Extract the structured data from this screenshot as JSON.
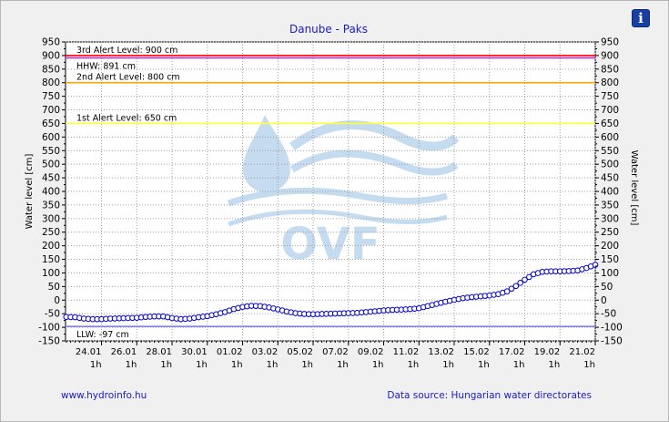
{
  "info_button": {
    "label": "i",
    "icon": "info-icon"
  },
  "footer": {
    "link": "www.hydroinfo.hu",
    "source": "Data source: Hungarian water directorates"
  },
  "watermark": {
    "text": "OVF",
    "color": "#5b9bd5"
  },
  "chart_data": {
    "type": "line",
    "title": "Danube - Paks",
    "ylabel": "Water level [cm]",
    "ylabel_right": "Water level [cm]",
    "ylim": [
      -150,
      950
    ],
    "yticks": [
      -150,
      -100,
      -50,
      0,
      50,
      100,
      150,
      200,
      250,
      300,
      350,
      400,
      450,
      500,
      550,
      600,
      650,
      700,
      750,
      800,
      850,
      900,
      950
    ],
    "xlim": [
      "2024-01-22T00:00",
      "2024-02-21T01:00"
    ],
    "xticks": [
      {
        "date": "2024-01-24T01:00",
        "label": "24.01",
        "sub": "1h"
      },
      {
        "date": "2024-01-26T01:00",
        "label": "26.01",
        "sub": "1h"
      },
      {
        "date": "2024-01-28T01:00",
        "label": "28.01",
        "sub": "1h"
      },
      {
        "date": "2024-01-30T01:00",
        "label": "30.01",
        "sub": "1h"
      },
      {
        "date": "2024-02-01T01:00",
        "label": "01.02",
        "sub": "1h"
      },
      {
        "date": "2024-02-03T01:00",
        "label": "03.02",
        "sub": "1h"
      },
      {
        "date": "2024-02-05T01:00",
        "label": "05.02",
        "sub": "1h"
      },
      {
        "date": "2024-02-07T01:00",
        "label": "07.02",
        "sub": "1h"
      },
      {
        "date": "2024-02-09T01:00",
        "label": "09.02",
        "sub": "1h"
      },
      {
        "date": "2024-02-11T01:00",
        "label": "11.02",
        "sub": "1h"
      },
      {
        "date": "2024-02-13T01:00",
        "label": "13.02",
        "sub": "1h"
      },
      {
        "date": "2024-02-15T01:00",
        "label": "15.02",
        "sub": "1h"
      },
      {
        "date": "2024-02-17T01:00",
        "label": "17.02",
        "sub": "1h"
      },
      {
        "date": "2024-02-19T01:00",
        "label": "19.02",
        "sub": "1h"
      },
      {
        "date": "2024-02-21T01:00",
        "label": "21.02",
        "sub": "1h"
      }
    ],
    "grid": true,
    "thresholds": [
      {
        "label": "3rd Alert Level: 900 cm",
        "value": 900,
        "color": "#ff0000"
      },
      {
        "label": "HHW: 891 cm",
        "value": 891,
        "color": "#cc33cc"
      },
      {
        "label": "2nd Alert Level: 800 cm",
        "value": 800,
        "color": "#ffa500"
      },
      {
        "label": "1st Alert Level: 650 cm",
        "value": 650,
        "color": "#ffff33"
      },
      {
        "label": "LLW: -97 cm",
        "value": -97,
        "color": "#8080ff"
      }
    ],
    "series": [
      {
        "color": "#0000cc",
        "x": [
          "2024-01-22T01:00",
          "2024-01-22T13:00",
          "2024-01-23T01:00",
          "2024-01-23T13:00",
          "2024-01-24T01:00",
          "2024-01-24T13:00",
          "2024-01-25T01:00",
          "2024-01-25T13:00",
          "2024-01-26T01:00",
          "2024-01-26T13:00",
          "2024-01-27T01:00",
          "2024-01-27T13:00",
          "2024-01-28T01:00",
          "2024-01-28T13:00",
          "2024-01-29T01:00",
          "2024-01-29T13:00",
          "2024-01-30T01:00",
          "2024-01-30T13:00",
          "2024-01-31T01:00",
          "2024-01-31T13:00",
          "2024-02-01T01:00",
          "2024-02-01T13:00",
          "2024-02-02T01:00",
          "2024-02-02T13:00",
          "2024-02-03T01:00",
          "2024-02-03T13:00",
          "2024-02-04T01:00",
          "2024-02-04T13:00",
          "2024-02-05T01:00",
          "2024-02-05T13:00",
          "2024-02-06T01:00",
          "2024-02-06T13:00",
          "2024-02-07T01:00",
          "2024-02-07T13:00",
          "2024-02-08T01:00",
          "2024-02-08T13:00",
          "2024-02-09T01:00",
          "2024-02-09T13:00",
          "2024-02-10T01:00",
          "2024-02-10T13:00",
          "2024-02-11T01:00",
          "2024-02-11T13:00",
          "2024-02-12T01:00",
          "2024-02-12T13:00",
          "2024-02-13T01:00",
          "2024-02-13T13:00",
          "2024-02-14T01:00",
          "2024-02-14T13:00",
          "2024-02-15T01:00",
          "2024-02-15T13:00",
          "2024-02-16T01:00",
          "2024-02-16T13:00",
          "2024-02-17T01:00",
          "2024-02-17T13:00",
          "2024-02-18T01:00",
          "2024-02-18T13:00",
          "2024-02-19T01:00",
          "2024-02-19T13:00",
          "2024-02-20T01:00",
          "2024-02-20T13:00",
          "2024-02-21T01:00"
        ],
        "y": [
          -62,
          -63,
          -68,
          -70,
          -70,
          -68,
          -67,
          -66,
          -65,
          -62,
          -60,
          -60,
          -66,
          -70,
          -68,
          -63,
          -59,
          -52,
          -44,
          -33,
          -25,
          -21,
          -22,
          -27,
          -34,
          -42,
          -48,
          -51,
          -52,
          -51,
          -50,
          -49,
          -48,
          -47,
          -44,
          -41,
          -38,
          -36,
          -35,
          -33,
          -30,
          -22,
          -14,
          -6,
          1,
          7,
          11,
          14,
          17,
          22,
          32,
          52,
          75,
          95,
          104,
          106,
          106,
          107,
          109,
          118,
          130
        ]
      }
    ]
  }
}
